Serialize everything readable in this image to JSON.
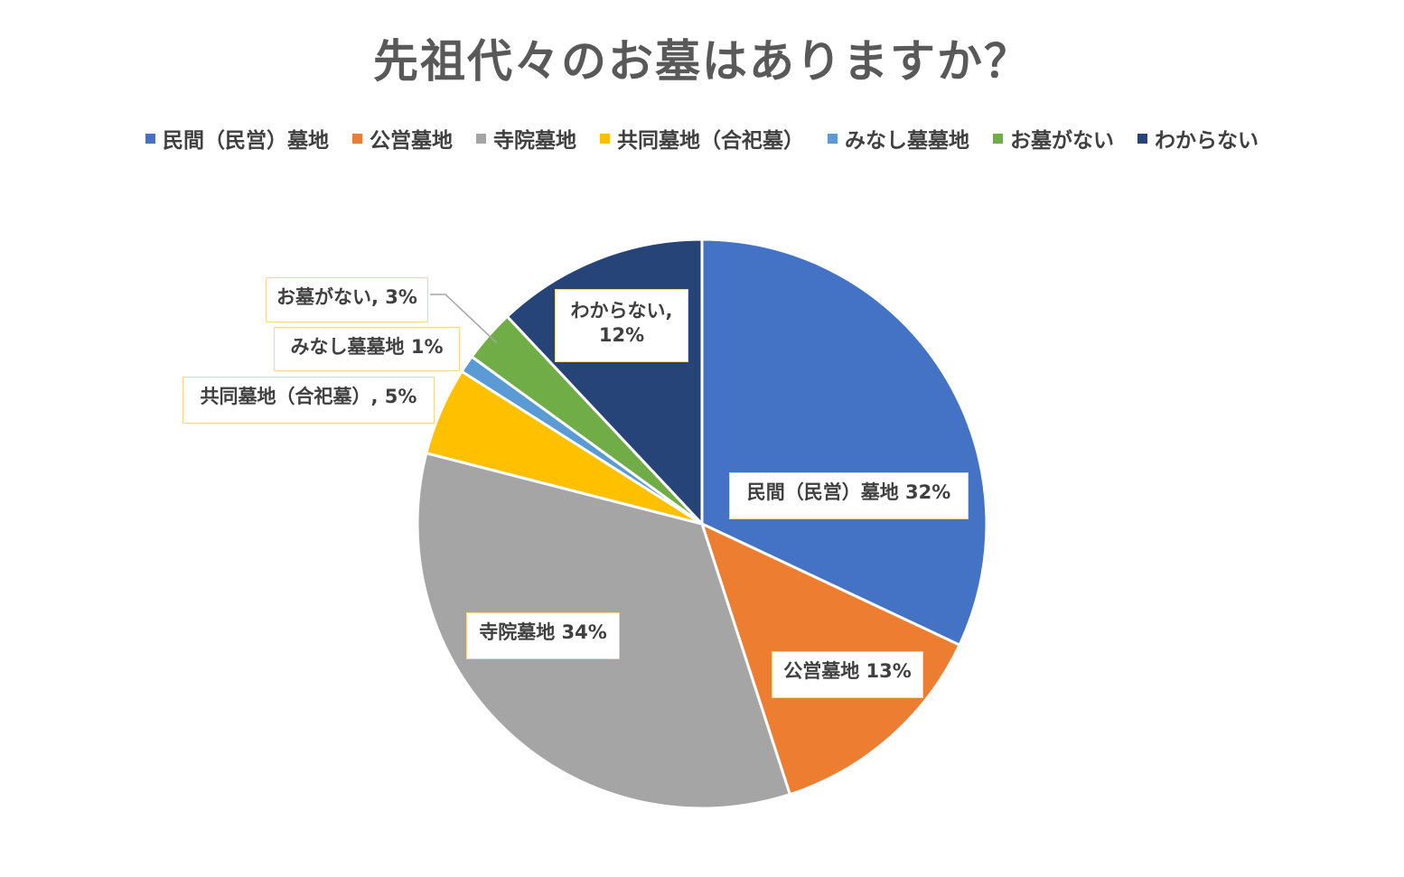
{
  "chart_data": {
    "type": "pie",
    "title": "先祖代々のお墓はありますか？",
    "legend_position": "top",
    "slices": [
      {
        "name": "民間（民営）墓地",
        "value": 32,
        "label": "民間（民営）墓地 32%",
        "color": "#4472C4"
      },
      {
        "name": "公営墓地",
        "value": 13,
        "label": "公営墓地 13%",
        "color": "#ED7D31"
      },
      {
        "name": "寺院墓地",
        "value": 34,
        "label": "寺院墓地 34%",
        "color": "#A5A5A5"
      },
      {
        "name": "共同墓地（合祀墓）",
        "value": 5,
        "label": "共同墓地（合祀墓）, 5%",
        "color": "#FFC000"
      },
      {
        "name": "みなし墓墓地",
        "value": 1,
        "label": "みなし墓墓地 1%",
        "color": "#5B9BD5"
      },
      {
        "name": "お墓がない",
        "value": 3,
        "label": "お墓がない, 3%",
        "color": "#70AD47"
      },
      {
        "name": "わからない",
        "value": 12,
        "label": "わからない, 12%",
        "color": "#264478"
      }
    ]
  }
}
